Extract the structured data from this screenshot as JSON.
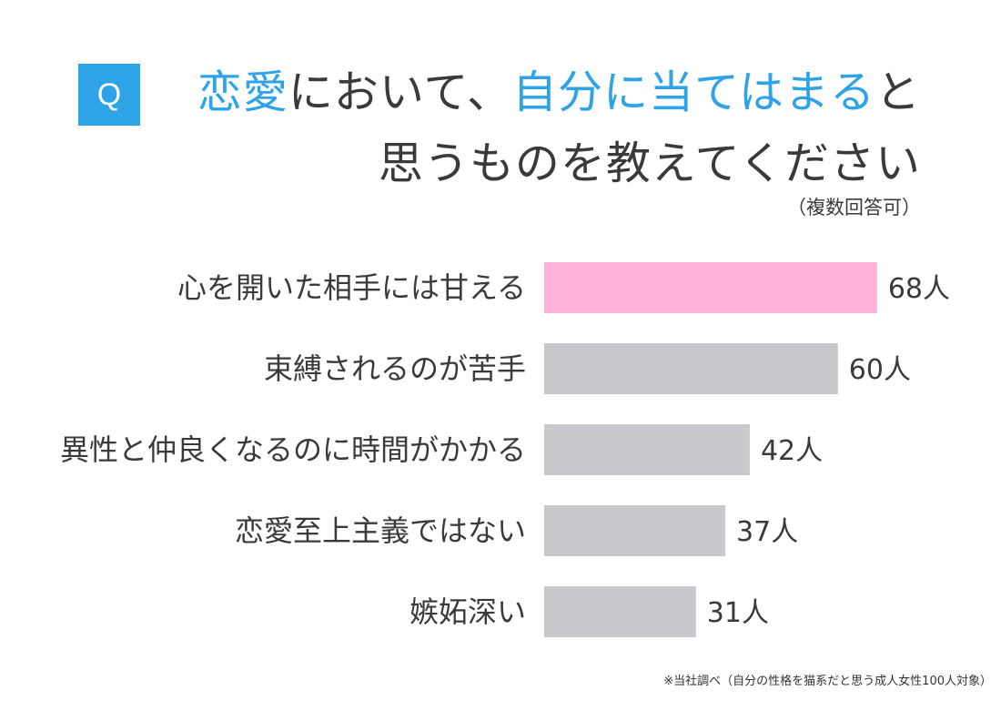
{
  "header": {
    "q_label": "Q",
    "title_line1": [
      {
        "text": "恋愛",
        "highlight": true
      },
      {
        "text": "において、",
        "highlight": false
      },
      {
        "text": "自分に当てはまる",
        "highlight": true
      },
      {
        "text": "と",
        "highlight": false
      }
    ],
    "title_line2": "思うものを教えてください",
    "note": "（複数回答可）"
  },
  "colors": {
    "accent": "#2ea3e8",
    "highlight_bar": "#ffb3d9",
    "bar": "#c9c8cc",
    "text": "#3a3a3a"
  },
  "chart_data": {
    "type": "bar",
    "orientation": "horizontal",
    "categories": [
      "心を開いた相手には甘える",
      "束縛されるのが苦手",
      "異性と仲良くなるのに時間がかかる",
      "恋愛至上主義ではない",
      "嫉妬深い"
    ],
    "values": [
      68,
      60,
      42,
      37,
      31
    ],
    "value_labels": [
      "68人",
      "60人",
      "42人",
      "37人",
      "31人"
    ],
    "highlight_index": 0,
    "grid": false,
    "legend": "none"
  },
  "footnote": "※当社調べ（自分の性格を猫系だと思う成人女性100人対象）"
}
